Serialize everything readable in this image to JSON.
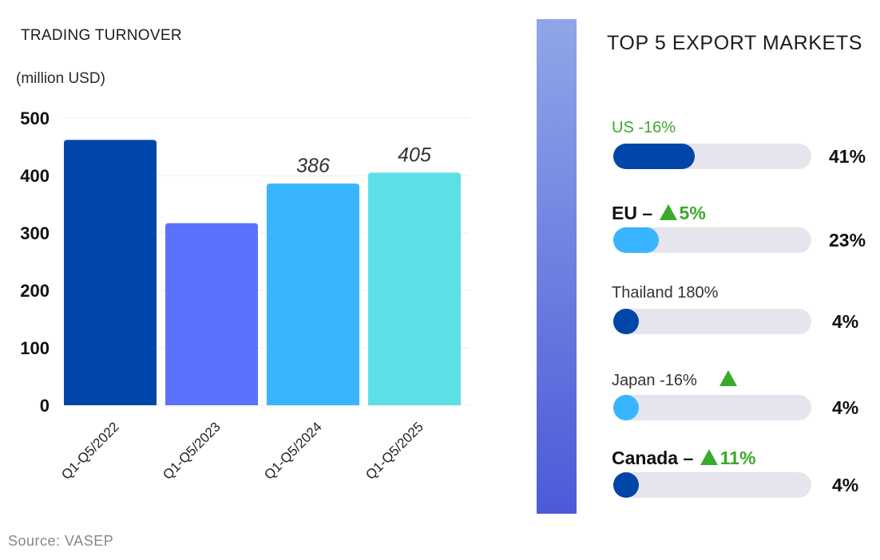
{
  "chart_data": [
    {
      "type": "bar",
      "title": "TRADING TURNOVER",
      "ylabel": "(million USD)",
      "categories": [
        "Q1-Q5/2022",
        "Q1-Q5/2023",
        "Q1-Q5/2024",
        "Q1-Q5/2025"
      ],
      "values": [
        462,
        317,
        386,
        405
      ],
      "data_labels": [
        "",
        "",
        "386",
        "405"
      ],
      "bar_colors": [
        "#0046a8",
        "#5b72ff",
        "#39b5ff",
        "#5ce0e6"
      ],
      "ylim": [
        0,
        500
      ],
      "yticks": [
        0,
        100,
        200,
        300,
        400,
        500
      ],
      "grid": true,
      "legend": "none"
    },
    {
      "type": "bar",
      "orientation": "horizontal",
      "title": "TOP 5 EXPORT MARKETS",
      "xlim": [
        0,
        100
      ],
      "grid": false,
      "legend": "none",
      "markets": [
        {
          "parts": [
            "US -16%"
          ],
          "label_color": "#3aaa2a",
          "bold": false,
          "percent_label": "41%",
          "value": 41,
          "color": "#0046a8"
        },
        {
          "parts": [
            "EU – ",
            "▲",
            "5%"
          ],
          "bold": true,
          "percent_label": "23%",
          "value": 23,
          "color": "#39b5ff"
        },
        {
          "parts": [
            "Thailand 180%"
          ],
          "bold": false,
          "percent_label": "4%",
          "value": 4,
          "color": "#0046a8"
        },
        {
          "parts": [
            "Japan -16%",
            "▲"
          ],
          "bold": false,
          "percent_label": "4%",
          "value": 4,
          "color": "#39b5ff"
        },
        {
          "parts": [
            "Canada – ",
            "▲",
            "11%"
          ],
          "bold": true,
          "percent_label": "4%",
          "value": 4,
          "color": "#0046a8"
        }
      ]
    }
  ],
  "source": "Source:  VASEP",
  "colors": {
    "up_arrow": "#3aaa2a",
    "track": "#e6e4ec",
    "divider_top": "#8fa7e8",
    "divider_bottom": "#4b5bd8"
  }
}
